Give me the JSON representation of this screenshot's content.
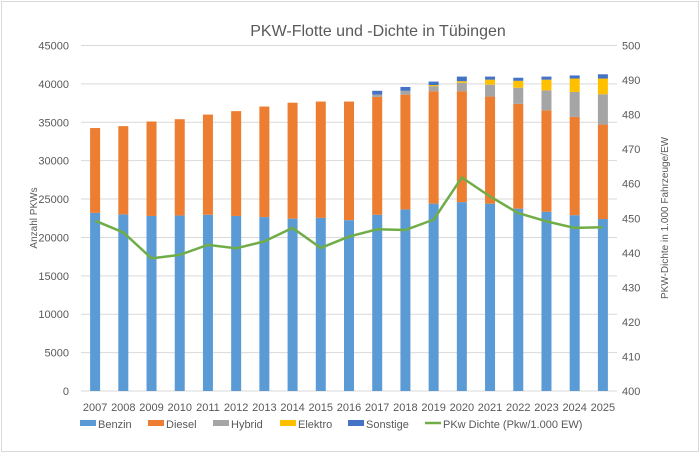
{
  "chart_data": {
    "type": "bar",
    "stacked": true,
    "title": "PKW-Flotte und -Dichte in Tübingen",
    "ylabel": "Anzahl PKWs",
    "y2label": "PKW-Dichte in 1.000 Fahrzeuge/EW",
    "ylim": [
      0,
      45000
    ],
    "yticks": [
      0,
      5000,
      10000,
      15000,
      20000,
      25000,
      30000,
      35000,
      40000,
      45000
    ],
    "y2lim": [
      400,
      500
    ],
    "y2ticks": [
      400,
      410,
      420,
      430,
      440,
      450,
      460,
      470,
      480,
      490,
      500
    ],
    "grid": true,
    "legend_position": "bottom",
    "categories": [
      "2007",
      "2008",
      "2009",
      "2010",
      "2011",
      "2012",
      "2013",
      "2014",
      "2015",
      "2016",
      "2017",
      "2018",
      "2019",
      "2020",
      "2021",
      "2022",
      "2023",
      "2024",
      "2025"
    ],
    "series": [
      {
        "name": "Benzin",
        "color": "#5b9bd5",
        "values": [
          23200,
          23000,
          22800,
          22850,
          22950,
          22800,
          22650,
          22450,
          22550,
          22250,
          22950,
          23650,
          24400,
          24600,
          24400,
          23750,
          23350,
          22900,
          22400
        ]
      },
      {
        "name": "Diesel",
        "color": "#ed7d31",
        "values": [
          11050,
          11500,
          12300,
          12550,
          13050,
          13650,
          14400,
          15100,
          15150,
          15450,
          15350,
          14950,
          14650,
          14450,
          13950,
          13650,
          13200,
          12800,
          12300
        ]
      },
      {
        "name": "Hybrid",
        "color": "#a5a5a5",
        "values": [
          0,
          0,
          0,
          0,
          0,
          0,
          0,
          0,
          0,
          0,
          300,
          500,
          650,
          1100,
          1550,
          2100,
          2600,
          3250,
          3950
        ]
      },
      {
        "name": "Elektro",
        "color": "#ffc000",
        "values": [
          0,
          0,
          0,
          0,
          0,
          0,
          0,
          0,
          0,
          0,
          0,
          0,
          150,
          200,
          650,
          900,
          1400,
          1750,
          2050
        ]
      },
      {
        "name": "Sonstige",
        "color": "#4472c4",
        "values": [
          0,
          0,
          0,
          0,
          0,
          0,
          0,
          0,
          0,
          0,
          500,
          500,
          450,
          600,
          400,
          400,
          400,
          400,
          550
        ]
      }
    ],
    "line_series": {
      "name": "PKw Dichte (Pkw/1.000 EW)",
      "color": "#70ad47",
      "axis": "right",
      "values": [
        449.3,
        445.9,
        438.4,
        439.4,
        442.3,
        441.3,
        443.3,
        447.2,
        441.4,
        444.7,
        446.8,
        446.6,
        449.6,
        461.8,
        456.3,
        451.5,
        449.1,
        447.2,
        447.4
      ]
    }
  }
}
